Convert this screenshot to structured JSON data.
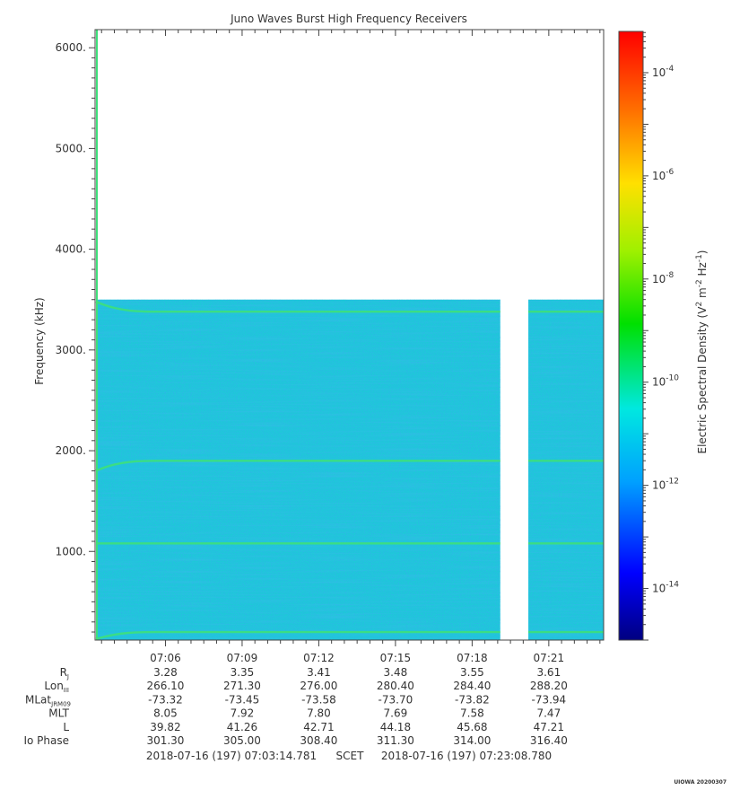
{
  "chart_data": {
    "type": "heatmap",
    "title": "Juno Waves Burst High Frequency Receivers",
    "ylabel": "Frequency (kHz)",
    "ylim": [
      120,
      6180
    ],
    "y_ticks": [
      {
        "value": 1000,
        "label": "1000."
      },
      {
        "value": 2000,
        "label": "2000."
      },
      {
        "value": 3000,
        "label": "3000."
      },
      {
        "value": 4000,
        "label": "4000."
      },
      {
        "value": 5000,
        "label": "5000."
      },
      {
        "value": 6000,
        "label": "6000."
      }
    ],
    "x_range_minutes": [
      3.246,
      23.146
    ],
    "x_ticks": [
      {
        "minute": 6,
        "label": "07:06"
      },
      {
        "minute": 9,
        "label": "07:09"
      },
      {
        "minute": 12,
        "label": "07:12"
      },
      {
        "minute": 15,
        "label": "07:15"
      },
      {
        "minute": 18,
        "label": "07:18"
      },
      {
        "minute": 21,
        "label": "07:21"
      }
    ],
    "data_ceiling_khz": 3500,
    "data_gap_minutes": [
      19.1,
      20.2
    ],
    "emission_lines": [
      {
        "freq_khz": 3380,
        "start_freq_khz": 3480
      },
      {
        "freq_khz": 1900,
        "start_freq_khz": 1800
      },
      {
        "freq_khz": 1080,
        "start_freq_khz": 1080
      },
      {
        "freq_khz": 200,
        "start_freq_khz": 130
      }
    ],
    "colorbar": {
      "label_prefix": "Electric Spectral Density (V",
      "label_mid": " m",
      "label_mid2": " Hz",
      "label_suffix": ")",
      "sup1": "2",
      "sup2": "-2",
      "sup3": "-1",
      "log_min": -15,
      "log_max": -3.2,
      "tick_base": "10",
      "ticks": [
        {
          "exp": -14,
          "label": "-14"
        },
        {
          "exp": -12,
          "label": "-12"
        },
        {
          "exp": -10,
          "label": "-10"
        },
        {
          "exp": -8,
          "label": "-8"
        },
        {
          "exp": -6,
          "label": "-6"
        },
        {
          "exp": -4,
          "label": "-4"
        }
      ]
    },
    "ephemeris": {
      "rows": [
        {
          "label": "R",
          "sub": "J",
          "values": [
            "3.28",
            "3.35",
            "3.41",
            "3.48",
            "3.55",
            "3.61"
          ]
        },
        {
          "label": "Lon",
          "sub": "III",
          "values": [
            "266.10",
            "271.30",
            "276.00",
            "280.40",
            "284.40",
            "288.20"
          ]
        },
        {
          "label": "MLat",
          "sub": "JRM09",
          "values": [
            "-73.32",
            "-73.45",
            "-73.58",
            "-73.70",
            "-73.82",
            "-73.94"
          ]
        },
        {
          "label": "MLT",
          "sub": "",
          "values": [
            "8.05",
            "7.92",
            "7.80",
            "7.69",
            "7.58",
            "7.47"
          ]
        },
        {
          "label": "L",
          "sub": "",
          "values": [
            "39.82",
            "41.26",
            "42.71",
            "44.18",
            "45.68",
            "47.21"
          ]
        },
        {
          "label": "Io Phase",
          "sub": "",
          "values": [
            "301.30",
            "305.00",
            "308.40",
            "311.30",
            "314.00",
            "316.40"
          ]
        }
      ]
    },
    "time_range": {
      "start": "2018-07-16 (197) 07:03:14.781",
      "separator": "SCET",
      "end": "2018-07-16 (197) 07:23:08.780"
    },
    "footer": "UIOWA 20200307"
  },
  "colors": {
    "background_noise": "#1ec8d8",
    "emission_line": "#3ee07a"
  }
}
